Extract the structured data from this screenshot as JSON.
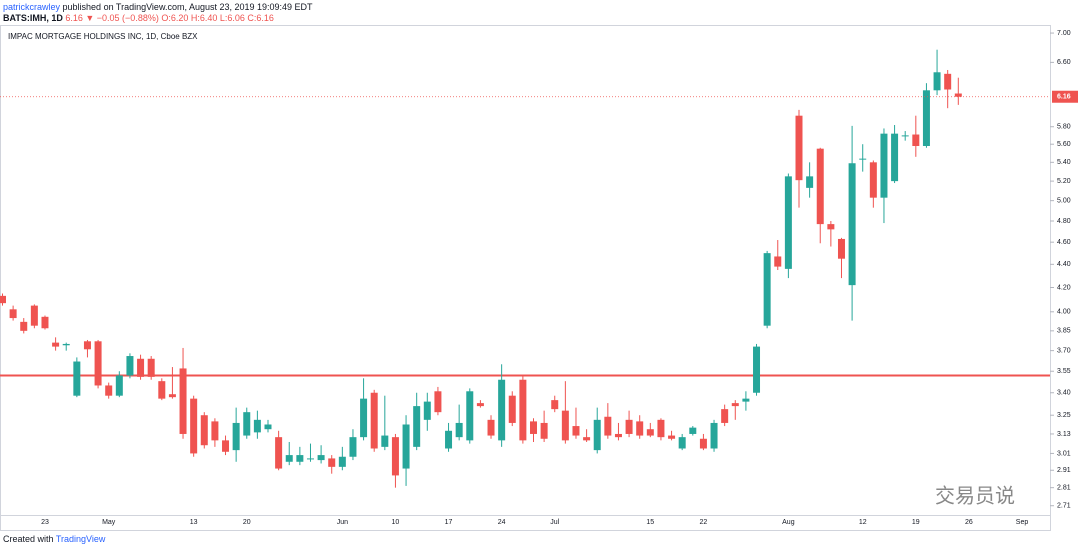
{
  "header": {
    "author": "patrickcrawley",
    "published": "published on TradingView.com, August 23, 2019 19:09:49 EDT",
    "symbol": "BATS:IMH, 1D",
    "quote": "6.16 ▼ −0.05 (−0.88%)",
    "ohlc": "O:6.20 H:6.40 L:6.06 C:6.16"
  },
  "footer": {
    "created": "Created with",
    "brand": "TradingView"
  },
  "watermark": "交易员说",
  "chart_data": {
    "type": "candlestick",
    "title": "IMPAC MORTGAGE HOLDINGS INC, 1D, Cboe BZX",
    "log_scale": true,
    "grid": false,
    "up_color": "#26a69a",
    "down_color": "#ef5350",
    "ylim": [
      2.66,
      7.1
    ],
    "yticks": [
      {
        "value": 7,
        "label": "7.00"
      },
      {
        "value": 6.6,
        "label": "6.60"
      },
      {
        "value": 5.8,
        "label": "5.80"
      },
      {
        "value": 5.6,
        "label": "5.60"
      },
      {
        "value": 5.4,
        "label": "5.40"
      },
      {
        "value": 5.2,
        "label": "5.20"
      },
      {
        "value": 5,
        "label": "5.00"
      },
      {
        "value": 4.8,
        "label": "4.80"
      },
      {
        "value": 4.6,
        "label": "4.60"
      },
      {
        "value": 4.4,
        "label": "4.40"
      },
      {
        "value": 4.2,
        "label": "4.20"
      },
      {
        "value": 4,
        "label": "4.00"
      },
      3.85,
      {
        "value": 3.7,
        "label": "3.70"
      },
      3.55,
      {
        "value": 3.4,
        "label": "3.40"
      },
      3.25,
      3.13,
      3.01,
      2.91,
      2.81,
      2.71
    ],
    "last_price": 6.16,
    "last_price_color": "#ef5350",
    "hline": 3.52,
    "hline_color": "#ef5350",
    "categories": [
      null,
      null,
      null,
      null,
      "23",
      null,
      null,
      null,
      null,
      null,
      "May",
      null,
      null,
      null,
      null,
      null,
      null,
      null,
      "13",
      null,
      null,
      null,
      null,
      "20",
      null,
      null,
      null,
      null,
      null,
      null,
      null,
      null,
      "Jun",
      null,
      null,
      null,
      null,
      "10",
      null,
      null,
      null,
      null,
      "17",
      null,
      null,
      null,
      null,
      "24",
      null,
      null,
      null,
      null,
      "Jul",
      null,
      null,
      null,
      null,
      null,
      null,
      null,
      null,
      "15",
      null,
      null,
      null,
      null,
      "22",
      null,
      null,
      null,
      null,
      null,
      null,
      null,
      "Aug",
      null,
      null,
      null,
      null,
      null,
      null,
      "12",
      null,
      null,
      null,
      null,
      "19",
      null,
      null,
      null,
      null,
      "26",
      null,
      null,
      null,
      null,
      "Sep"
    ],
    "open": [
      4.13,
      4.02,
      3.92,
      4.05,
      3.96,
      3.76,
      3.74,
      3.38,
      3.77,
      3.77,
      3.45,
      3.38,
      3.52,
      3.64,
      3.64,
      3.48,
      3.39,
      3.57,
      3.36,
      3.25,
      3.21,
      3.09,
      3.03,
      3.12,
      3.14,
      3.16,
      3.11,
      2.96,
      2.96,
      2.98,
      2.97,
      2.98,
      2.93,
      2.99,
      3.11,
      3.4,
      3.05,
      3.11,
      2.92,
      3.05,
      3.22,
      3.41,
      3.04,
      3.11,
      3.09,
      3.33,
      3.22,
      3.09,
      3.38,
      3.49,
      3.21,
      3.2,
      3.35,
      3.28,
      3.18,
      3.11,
      3.03,
      3.24,
      3.13,
      3.22,
      3.21,
      3.16,
      3.22,
      3.12,
      3.04,
      3.13,
      3.1,
      3.04,
      3.29,
      3.33,
      3.34,
      3.4,
      3.89,
      4.47,
      4.36,
      5.93,
      5.13,
      5.55,
      4.77,
      4.63,
      4.22,
      5.43,
      5.4,
      5.03,
      5.2,
      5.69,
      5.71,
      5.58,
      6.24,
      6.45,
      6.2,
      null,
      null,
      null,
      null,
      null,
      null
    ],
    "high": [
      4.15,
      4.05,
      3.95,
      4.06,
      3.97,
      3.8,
      3.76,
      3.65,
      3.78,
      3.78,
      3.47,
      3.55,
      3.68,
      3.67,
      3.66,
      3.5,
      3.58,
      3.72,
      3.38,
      3.27,
      3.23,
      3.12,
      3.3,
      3.3,
      3.28,
      3.22,
      3.15,
      3.08,
      3.05,
      3.07,
      3.06,
      3.0,
      3.05,
      3.16,
      3.5,
      3.42,
      3.38,
      3.13,
      3.25,
      3.4,
      3.4,
      3.44,
      3.2,
      3.32,
      3.43,
      3.35,
      3.25,
      3.6,
      3.41,
      3.52,
      3.23,
      3.28,
      3.38,
      3.48,
      3.3,
      3.16,
      3.3,
      3.33,
      3.2,
      3.28,
      3.25,
      3.2,
      3.23,
      3.15,
      3.13,
      3.18,
      3.13,
      3.22,
      3.32,
      3.35,
      3.41,
      3.75,
      4.52,
      4.62,
      5.28,
      6.0,
      5.4,
      5.56,
      4.8,
      4.64,
      5.81,
      5.6,
      5.42,
      5.78,
      5.82,
      5.75,
      5.93,
      6.33,
      6.77,
      6.5,
      6.4,
      null,
      null,
      null,
      null,
      null,
      null
    ],
    "low": [
      4.05,
      3.93,
      3.83,
      3.87,
      3.86,
      3.7,
      3.7,
      3.37,
      3.65,
      3.43,
      3.36,
      3.37,
      3.5,
      3.49,
      3.49,
      3.35,
      3.36,
      3.1,
      2.99,
      3.04,
      3.05,
      3.0,
      2.96,
      3.1,
      3.1,
      3.14,
      2.91,
      2.94,
      2.94,
      2.96,
      2.95,
      2.89,
      2.91,
      2.97,
      3.09,
      3.02,
      3.03,
      2.81,
      2.82,
      3.03,
      3.15,
      3.25,
      3.02,
      3.09,
      3.07,
      3.3,
      3.1,
      3.05,
      3.18,
      3.07,
      3.08,
      3.08,
      3.27,
      3.07,
      3.1,
      3.08,
      3.01,
      3.1,
      3.09,
      3.11,
      3.1,
      3.11,
      3.09,
      3.09,
      3.03,
      3.12,
      3.03,
      3.02,
      3.18,
      3.22,
      3.28,
      3.38,
      3.87,
      4.35,
      4.28,
      4.93,
      5.03,
      4.59,
      4.56,
      4.28,
      3.93,
      5.3,
      4.93,
      4.78,
      5.18,
      5.64,
      5.46,
      5.56,
      6.18,
      6.02,
      6.06,
      null,
      null,
      null,
      null,
      null,
      null
    ],
    "close": [
      4.07,
      3.95,
      3.85,
      3.89,
      3.87,
      3.73,
      3.75,
      3.62,
      3.71,
      3.45,
      3.38,
      3.52,
      3.66,
      3.51,
      3.51,
      3.36,
      3.37,
      3.13,
      3.01,
      3.06,
      3.09,
      3.02,
      3.2,
      3.27,
      3.22,
      3.19,
      2.92,
      3.0,
      3.0,
      2.98,
      3.0,
      2.93,
      2.99,
      3.11,
      3.36,
      3.04,
      3.12,
      2.88,
      3.19,
      3.31,
      3.34,
      3.27,
      3.15,
      3.2,
      3.41,
      3.31,
      3.12,
      3.49,
      3.2,
      3.09,
      3.13,
      3.1,
      3.29,
      3.09,
      3.12,
      3.09,
      3.22,
      3.12,
      3.11,
      3.13,
      3.12,
      3.12,
      3.11,
      3.1,
      3.11,
      3.17,
      3.04,
      3.2,
      3.2,
      3.31,
      3.36,
      3.73,
      4.5,
      4.38,
      5.25,
      5.21,
      5.25,
      4.77,
      4.72,
      4.45,
      5.39,
      5.44,
      5.03,
      5.72,
      5.72,
      5.7,
      5.58,
      6.24,
      6.47,
      6.25,
      6.16,
      null,
      null,
      null,
      null,
      null,
      null
    ]
  }
}
